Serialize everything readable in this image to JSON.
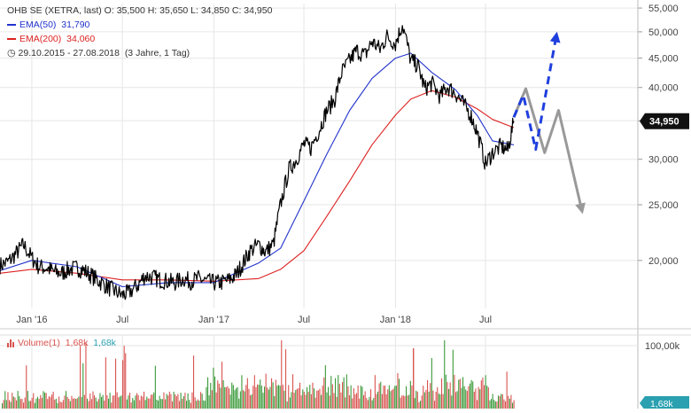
{
  "header": {
    "title_line": "OHB SE (XETRA, last)  O: 35,500  H: 35,650  L: 34,850  C: 34,950",
    "ema50_label": "EMA(50)",
    "ema50_value": "31,790",
    "ema200_label": "EMA(200)",
    "ema200_value": "34,060",
    "range_label": "29.10.2015 - 27.08.2018",
    "range_detail": "(3 Jahre, 1 Tag)",
    "clock_icon": "clock-icon"
  },
  "colors": {
    "price": "#000000",
    "ema50": "#2233cc",
    "ema200": "#dd2222",
    "grid": "#e6e6e6",
    "forecast_blue": "#1f3fdd",
    "forecast_gray": "#999999",
    "vol_up": "#3a9a3a",
    "vol_down": "#d9534f"
  },
  "chart_data": [
    {
      "type": "line",
      "title": "OHB SE (XETRA, last)",
      "y_scale": "log",
      "ylim": [
        16500,
        56000
      ],
      "y_ticks": [
        "55,000",
        "50,000",
        "45,000",
        "40,000",
        "35,000",
        "30,000",
        "25,000",
        "20,000"
      ],
      "y_tick_values": [
        55000,
        50000,
        45000,
        40000,
        35000,
        30000,
        25000,
        20000
      ],
      "x_ticks": [
        "Jan '16",
        "Jul",
        "Jan '17",
        "Jul",
        "Jan '18",
        "Jul"
      ],
      "x_tick_dates": [
        "2016-01-01",
        "2016-07-01",
        "2017-01-01",
        "2017-07-01",
        "2018-01-01",
        "2018-07-01"
      ],
      "xlim": [
        "2015-10-29",
        "2018-08-27"
      ],
      "last_price_label": "34,950",
      "series": [
        {
          "name": "OHB SE",
          "x": [
            "2015-10-29",
            "2015-11-15",
            "2015-12-01",
            "2015-12-15",
            "2016-01-01",
            "2016-01-15",
            "2016-02-01",
            "2016-02-15",
            "2016-03-01",
            "2016-03-15",
            "2016-04-01",
            "2016-04-15",
            "2016-05-01",
            "2016-05-15",
            "2016-06-01",
            "2016-06-15",
            "2016-07-01",
            "2016-07-15",
            "2016-08-01",
            "2016-08-15",
            "2016-09-01",
            "2016-09-15",
            "2016-10-01",
            "2016-10-15",
            "2016-11-01",
            "2016-11-15",
            "2016-12-01",
            "2016-12-15",
            "2017-01-01",
            "2017-01-15",
            "2017-02-01",
            "2017-02-15",
            "2017-03-01",
            "2017-03-15",
            "2017-04-01",
            "2017-04-15",
            "2017-05-01",
            "2017-05-15",
            "2017-06-01",
            "2017-06-15",
            "2017-07-01",
            "2017-07-15",
            "2017-08-01",
            "2017-08-15",
            "2017-09-01",
            "2017-09-15",
            "2017-10-01",
            "2017-10-15",
            "2017-11-01",
            "2017-11-15",
            "2017-12-01",
            "2017-12-15",
            "2018-01-01",
            "2018-01-15",
            "2018-02-01",
            "2018-02-15",
            "2018-03-01",
            "2018-03-15",
            "2018-04-01",
            "2018-04-15",
            "2018-05-01",
            "2018-05-15",
            "2018-06-01",
            "2018-06-15",
            "2018-07-01",
            "2018-07-15",
            "2018-08-01",
            "2018-08-15",
            "2018-08-27"
          ],
          "y": [
            19600,
            19900,
            20600,
            21300,
            20200,
            19500,
            19400,
            19100,
            19000,
            19300,
            19400,
            19200,
            18800,
            18400,
            18000,
            17700,
            17400,
            17600,
            18100,
            18800,
            18700,
            18500,
            18400,
            18300,
            18600,
            18400,
            18600,
            18400,
            18300,
            18300,
            18500,
            18900,
            19800,
            20800,
            21300,
            20700,
            21400,
            25000,
            28800,
            29900,
            31900,
            31400,
            33800,
            36300,
            38200,
            42500,
            44600,
            46400,
            45500,
            48100,
            46600,
            49100,
            47700,
            51500,
            44600,
            43700,
            39800,
            40700,
            38600,
            40100,
            39200,
            37700,
            35900,
            33300,
            29400,
            30800,
            31600,
            31100,
            34950
          ]
        },
        {
          "name": "EMA(50)",
          "x": [
            "2015-10-29",
            "2016-01-01",
            "2016-04-01",
            "2016-07-01",
            "2016-10-01",
            "2017-01-01",
            "2017-04-01",
            "2017-05-15",
            "2017-07-01",
            "2017-08-15",
            "2017-10-01",
            "2017-11-15",
            "2018-01-01",
            "2018-02-01",
            "2018-03-15",
            "2018-05-01",
            "2018-06-15",
            "2018-07-15",
            "2018-08-27"
          ],
          "y": [
            19200,
            20000,
            19500,
            18000,
            18300,
            18300,
            19800,
            21000,
            25400,
            30500,
            36500,
            41500,
            45000,
            45900,
            42500,
            39700,
            35700,
            32300,
            31790
          ]
        },
        {
          "name": "EMA(200)",
          "x": [
            "2015-10-29",
            "2016-01-01",
            "2016-04-01",
            "2016-07-01",
            "2016-10-01",
            "2017-01-01",
            "2017-04-01",
            "2017-05-15",
            "2017-07-01",
            "2017-08-15",
            "2017-10-01",
            "2017-11-15",
            "2018-01-01",
            "2018-02-01",
            "2018-03-15",
            "2018-05-01",
            "2018-06-15",
            "2018-07-15",
            "2018-08-27"
          ],
          "y": [
            19000,
            19300,
            19000,
            18500,
            18500,
            18400,
            18600,
            19300,
            20800,
            23800,
            27500,
            31800,
            35800,
            38200,
            39500,
            38500,
            36700,
            35200,
            34060
          ]
        }
      ],
      "forecast_paths": [
        {
          "name": "blue-dashed-scenario",
          "x": [
            "2018-08-27",
            "2018-09-15",
            "2018-10-10",
            "2018-11-20"
          ],
          "y": [
            35500,
            38800,
            31200,
            49000
          ]
        },
        {
          "name": "gray-scenario",
          "x": [
            "2018-08-27",
            "2018-09-20",
            "2018-10-28",
            "2018-11-25",
            "2019-01-10"
          ],
          "y": [
            35500,
            39800,
            30800,
            36500,
            24600
          ]
        }
      ]
    },
    {
      "type": "bar",
      "title": "Volume(1)",
      "legend_values": [
        "1,68k",
        "1,68k"
      ],
      "y_ticks": [
        "100,00k"
      ],
      "last_value_label": "1,68k",
      "note": "daily volume bars, colored red/green by price direction"
    }
  ]
}
